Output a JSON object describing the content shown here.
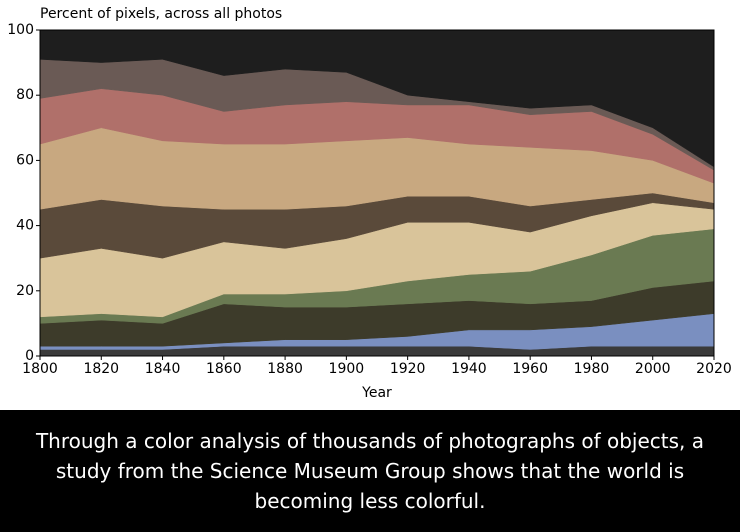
{
  "chart_data": {
    "type": "stacked_area",
    "title": "Percent of pixels, across all photos",
    "x_label": "Year",
    "x": [
      1800,
      1820,
      1840,
      1860,
      1880,
      1900,
      1920,
      1940,
      1960,
      1980,
      2000,
      2020
    ],
    "xlim": [
      1800,
      2020
    ],
    "xticks": [
      1800,
      1820,
      1840,
      1860,
      1880,
      1900,
      1920,
      1940,
      1960,
      1980,
      2000,
      2020
    ],
    "ylim": [
      0,
      100
    ],
    "yticks": [
      0,
      20,
      40,
      60,
      80,
      100
    ],
    "series": [
      {
        "color": "#3a3a3a",
        "values": [
          2,
          2,
          2,
          3,
          3,
          3,
          3,
          3,
          2,
          3,
          3,
          3
        ]
      },
      {
        "color": "#7a8fc0",
        "values": [
          1,
          1,
          1,
          1,
          2,
          2,
          3,
          5,
          6,
          6,
          8,
          10
        ]
      },
      {
        "color": "#3d3b2a",
        "values": [
          7,
          8,
          7,
          12,
          10,
          10,
          10,
          9,
          8,
          8,
          10,
          10
        ]
      },
      {
        "color": "#6a7a52",
        "values": [
          2,
          2,
          2,
          3,
          4,
          5,
          7,
          8,
          10,
          14,
          16,
          16
        ]
      },
      {
        "color": "#d9c49a",
        "values": [
          18,
          20,
          18,
          16,
          14,
          16,
          18,
          16,
          12,
          12,
          10,
          6
        ]
      },
      {
        "color": "#5a4a3a",
        "values": [
          15,
          15,
          16,
          10,
          12,
          10,
          8,
          8,
          8,
          5,
          3,
          2
        ]
      },
      {
        "color": "#c8a880",
        "values": [
          20,
          22,
          20,
          20,
          20,
          20,
          18,
          16,
          18,
          15,
          10,
          6
        ]
      },
      {
        "color": "#b0706a",
        "values": [
          14,
          12,
          14,
          10,
          12,
          12,
          10,
          12,
          10,
          12,
          8,
          4
        ]
      },
      {
        "color": "#6a5a55",
        "values": [
          12,
          8,
          11,
          11,
          11,
          9,
          3,
          1,
          2,
          2,
          2,
          1
        ]
      },
      {
        "color": "#1e1e1e",
        "values": [
          9,
          10,
          9,
          14,
          12,
          13,
          20,
          22,
          24,
          23,
          30,
          42
        ]
      }
    ]
  },
  "caption": "Through a color analysis of thousands of photographs of objects, a study from the Science Museum Group shows that the world is becoming less colorful."
}
